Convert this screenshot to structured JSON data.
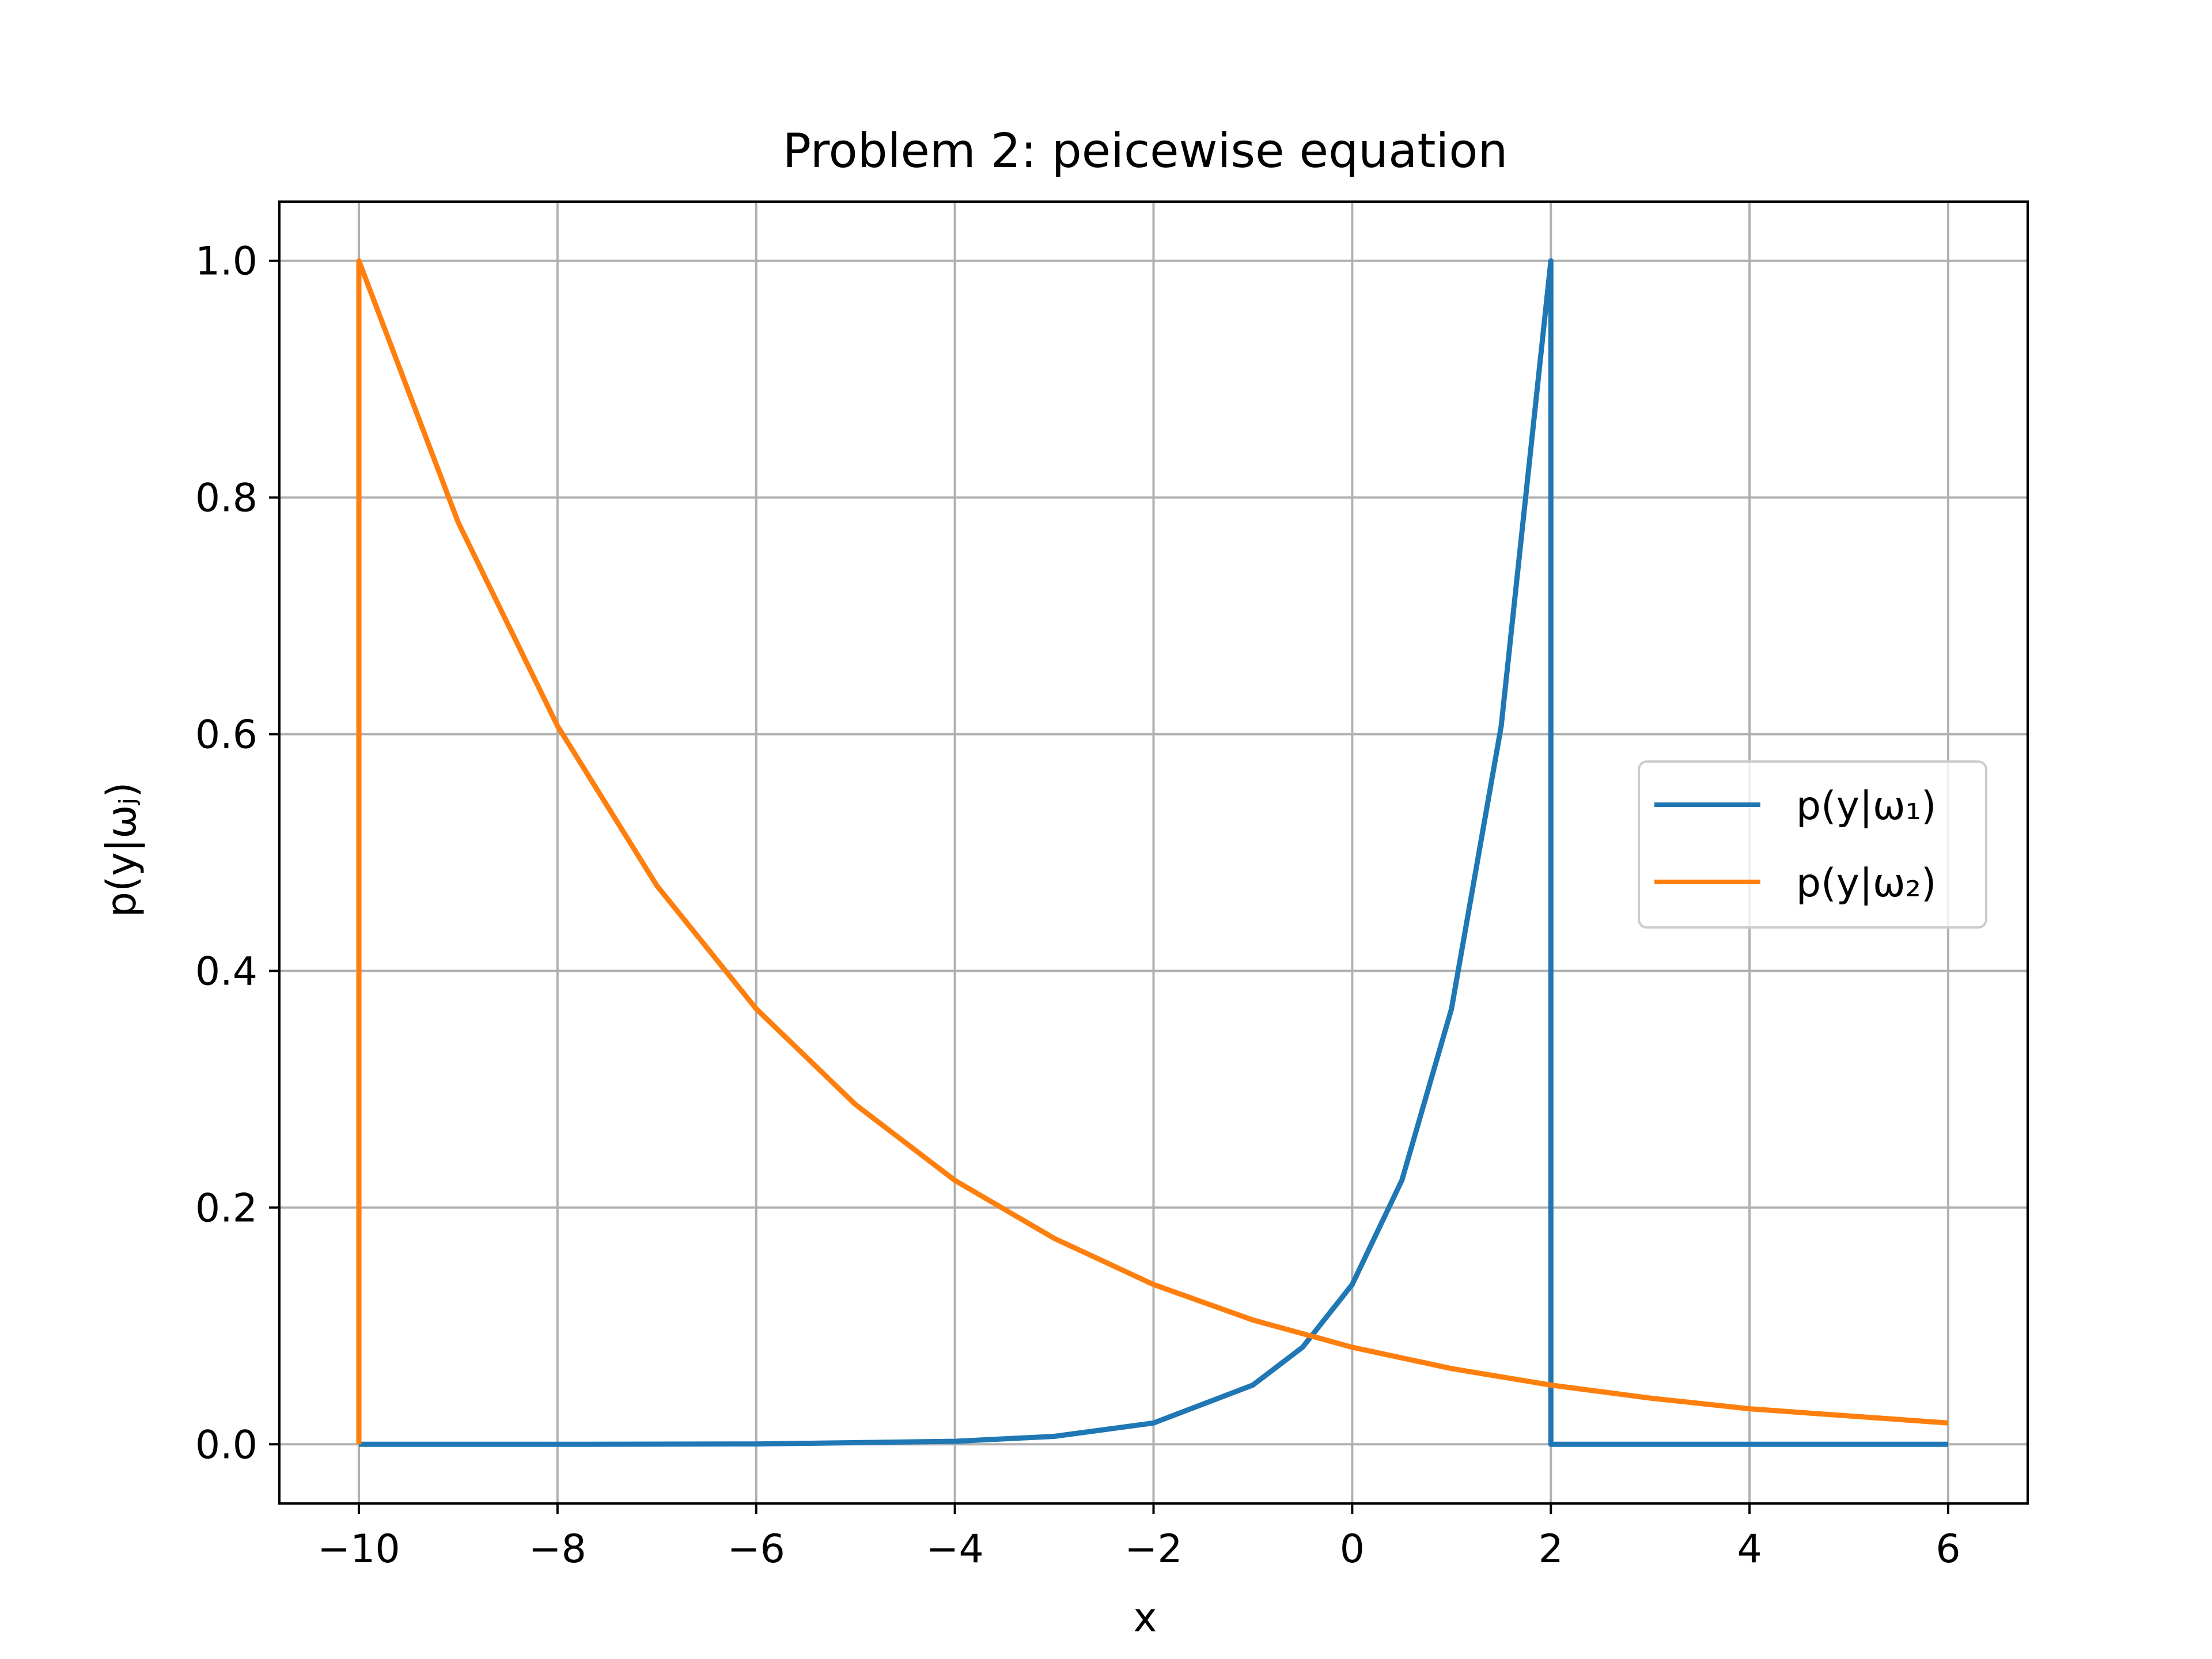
{
  "chart_data": {
    "type": "line",
    "title": "Problem 2: peicewise equation",
    "xlabel": "x",
    "ylabel": "p(y|ωⱼ)",
    "xlim": [
      -10.8,
      6.8
    ],
    "ylim": [
      -0.05,
      1.05
    ],
    "xticks": [
      -10,
      -8,
      -6,
      -4,
      -2,
      0,
      2,
      4,
      6
    ],
    "xtick_labels": [
      "−10",
      "−8",
      "−6",
      "−4",
      "−2",
      "0",
      "2",
      "4",
      "6"
    ],
    "yticks": [
      0.0,
      0.2,
      0.4,
      0.6,
      0.8,
      1.0
    ],
    "ytick_labels": [
      "0.0",
      "0.2",
      "0.4",
      "0.6",
      "0.8",
      "1.0"
    ],
    "grid": true,
    "legend_position": "center-right",
    "series": [
      {
        "name": "p(y|ω₁)",
        "color": "#1f77b4",
        "x": [
          -10,
          -8,
          -6,
          -4,
          -3,
          -2,
          -1,
          -0.5,
          0,
          0.5,
          1,
          1.5,
          2,
          2,
          6
        ],
        "y": [
          0.0,
          0.0,
          0.0003,
          0.0025,
          0.0067,
          0.018,
          0.05,
          0.082,
          0.135,
          0.223,
          0.368,
          0.607,
          1.0,
          0.0,
          0.0
        ]
      },
      {
        "name": "p(y|ω₂)",
        "color": "#ff7f0e",
        "x": [
          -10,
          -10,
          -9,
          -8,
          -7,
          -6,
          -5,
          -4,
          -3,
          -2,
          -1,
          0,
          1,
          2,
          3,
          4,
          5,
          6
        ],
        "y": [
          0.0,
          1.0,
          0.779,
          0.607,
          0.472,
          0.368,
          0.287,
          0.223,
          0.174,
          0.135,
          0.105,
          0.082,
          0.064,
          0.05,
          0.039,
          0.03,
          0.024,
          0.018
        ]
      }
    ]
  }
}
